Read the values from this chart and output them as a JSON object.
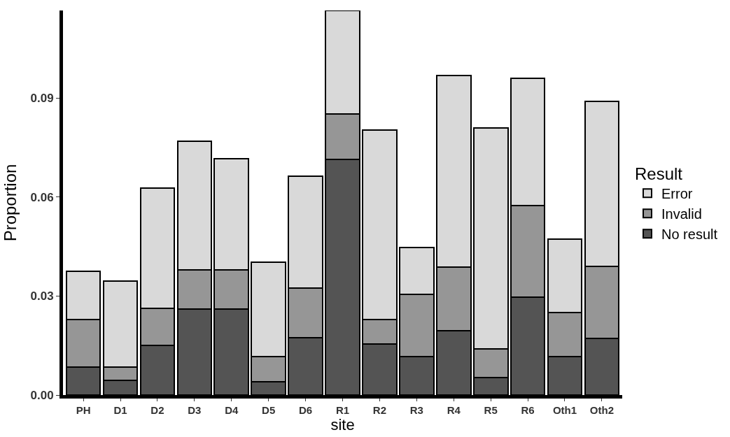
{
  "chart_data": {
    "type": "bar",
    "stacked": true,
    "xlabel": "site",
    "ylabel": "Proportion",
    "legend_title": "Result",
    "legend": "right",
    "categories": [
      "PH",
      "D1",
      "D2",
      "D3",
      "D4",
      "D5",
      "D6",
      "R1",
      "R2",
      "R3",
      "R4",
      "R5",
      "R6",
      "Oth1",
      "Oth2"
    ],
    "ylim": [
      0,
      0.1165
    ],
    "yticks": [
      {
        "value": 0,
        "label": "0.00"
      },
      {
        "value": 0.03,
        "label": "0.03"
      },
      {
        "value": 0.06,
        "label": "0.06"
      },
      {
        "value": 0.09,
        "label": "0.09"
      }
    ],
    "series": [
      {
        "name": "No result",
        "color": "#545454",
        "values": [
          0.0084,
          0.0045,
          0.015,
          0.026,
          0.026,
          0.0041,
          0.0174,
          0.0713,
          0.0155,
          0.0116,
          0.0195,
          0.0054,
          0.0296,
          0.0116,
          0.0172
        ]
      },
      {
        "name": "Invalid",
        "color": "#969696",
        "values": [
          0.0144,
          0.0039,
          0.0112,
          0.012,
          0.012,
          0.0075,
          0.015,
          0.0138,
          0.0073,
          0.0189,
          0.0192,
          0.0086,
          0.0278,
          0.0135,
          0.0217
        ]
      },
      {
        "name": "Error",
        "color": "#d9d9d9",
        "values": [
          0.0146,
          0.0262,
          0.0365,
          0.0389,
          0.0335,
          0.0286,
          0.034,
          0.0313,
          0.0575,
          0.0142,
          0.058,
          0.067,
          0.0386,
          0.0222,
          0.05
        ]
      }
    ]
  }
}
